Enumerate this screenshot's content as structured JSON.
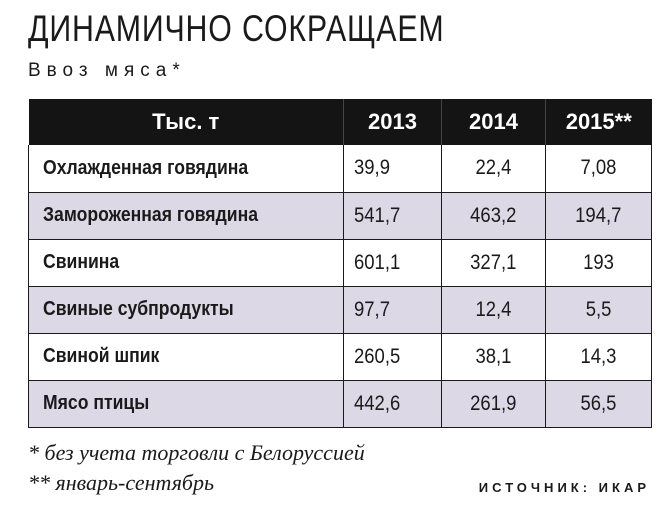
{
  "header": {
    "title": "ДИНАМИЧНО СОКРАЩАЕМ",
    "subtitle": "Ввоз мяса*"
  },
  "table": {
    "columns": [
      "Тыс. т",
      "2013",
      "2014",
      "2015**"
    ],
    "rows": [
      {
        "label": "Охлажденная говядина",
        "v2013": "39,9",
        "v2014": "22,4",
        "v2015": "7,08"
      },
      {
        "label": "Замороженная говядина",
        "v2013": "541,7",
        "v2014": "463,2",
        "v2015": "194,7"
      },
      {
        "label": "Свинина",
        "v2013": "601,1",
        "v2014": "327,1",
        "v2015": "193"
      },
      {
        "label": "Свиные субпродукты",
        "v2013": "97,7",
        "v2014": "12,4",
        "v2015": "5,5"
      },
      {
        "label": "Свиной шпик",
        "v2013": "260,5",
        "v2014": "38,1",
        "v2015": "14,3"
      },
      {
        "label": "Мясо птицы",
        "v2013": "442,6",
        "v2014": "261,9",
        "v2015": "56,5"
      }
    ]
  },
  "footnotes": {
    "note1": "* без учета торговли с Белоруссией",
    "note2": "** январь-сентябрь"
  },
  "source": "ИСТОЧНИК: ИКАР",
  "colors": {
    "header_bg": "#141414",
    "stripe": "#dcd8e6"
  },
  "chart_data": {
    "type": "table",
    "title": "ДИНАМИЧНО СОКРАЩАЕМ",
    "subtitle": "Ввоз мяса*",
    "unit": "Тыс. т",
    "columns": [
      "2013",
      "2014",
      "2015**"
    ],
    "categories": [
      "Охлажденная говядина",
      "Замороженная говядина",
      "Свинина",
      "Свиные субпродукты",
      "Свиной шпик",
      "Мясо птицы"
    ],
    "series": [
      {
        "name": "2013",
        "values": [
          39.9,
          541.7,
          601.1,
          97.7,
          260.5,
          442.6
        ]
      },
      {
        "name": "2014",
        "values": [
          22.4,
          463.2,
          327.1,
          12.4,
          38.1,
          261.9
        ]
      },
      {
        "name": "2015**",
        "values": [
          7.08,
          194.7,
          193,
          5.5,
          14.3,
          56.5
        ]
      }
    ]
  }
}
